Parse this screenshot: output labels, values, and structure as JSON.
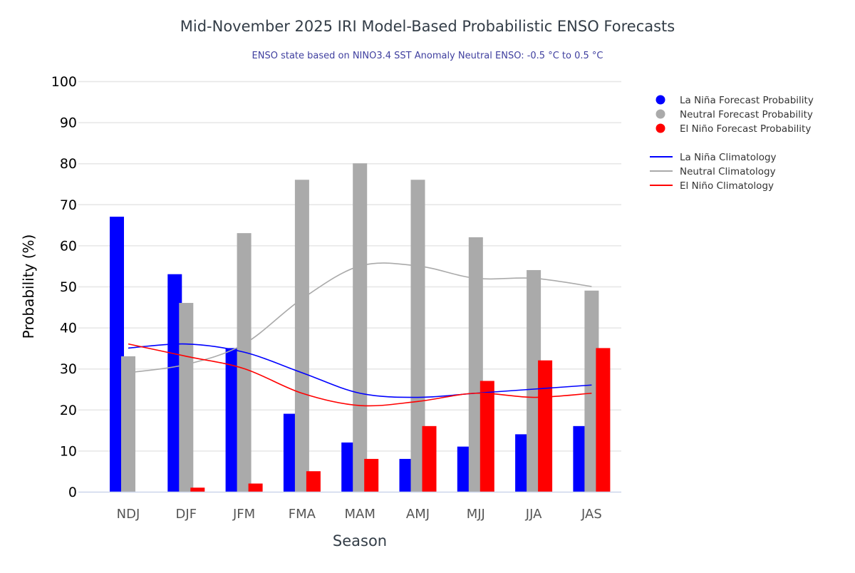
{
  "chart_data": {
    "type": "bar",
    "title": "Mid-November 2025 IRI Model-Based Probabilistic ENSO Forecasts",
    "subtitle": "ENSO state based on NINO3.4 SST Anomaly Neutral ENSO: -0.5 °C to 0.5 °C",
    "xlabel": "Season",
    "ylabel": "Probability (%)",
    "ylim": [
      0,
      100
    ],
    "yticks": [
      0,
      10,
      20,
      30,
      40,
      50,
      60,
      70,
      80,
      90,
      100
    ],
    "grid": true,
    "legend_placement": "right",
    "categories": [
      "NDJ",
      "DJF",
      "JFM",
      "FMA",
      "MAM",
      "AMJ",
      "MJJ",
      "JJA",
      "JAS"
    ],
    "series": [
      {
        "name": "La Niña Forecast Probability",
        "kind": "bar",
        "color": "#0000ff",
        "values": [
          67,
          53,
          35,
          19,
          12,
          8,
          11,
          14,
          16
        ]
      },
      {
        "name": "Neutral Forecast Probability",
        "kind": "bar",
        "color": "#aaaaaa",
        "values": [
          33,
          46,
          63,
          76,
          80,
          76,
          62,
          54,
          49
        ]
      },
      {
        "name": "El Niño Forecast Probability",
        "kind": "bar",
        "color": "#ff0000",
        "values": [
          0,
          1,
          2,
          5,
          8,
          16,
          27,
          32,
          35
        ]
      },
      {
        "name": "La Niña Climatology",
        "kind": "line",
        "color": "#0000ff",
        "values": [
          35,
          36,
          34,
          29,
          24,
          23,
          24,
          25,
          26
        ]
      },
      {
        "name": "Neutral Climatology",
        "kind": "line",
        "color": "#aaaaaa",
        "values": [
          29,
          31,
          36,
          47,
          55,
          55,
          52,
          52,
          50
        ]
      },
      {
        "name": "El Niño Climatology",
        "kind": "line",
        "color": "#ff0000",
        "values": [
          36,
          33,
          30,
          24,
          21,
          22,
          24,
          23,
          24
        ]
      }
    ]
  }
}
